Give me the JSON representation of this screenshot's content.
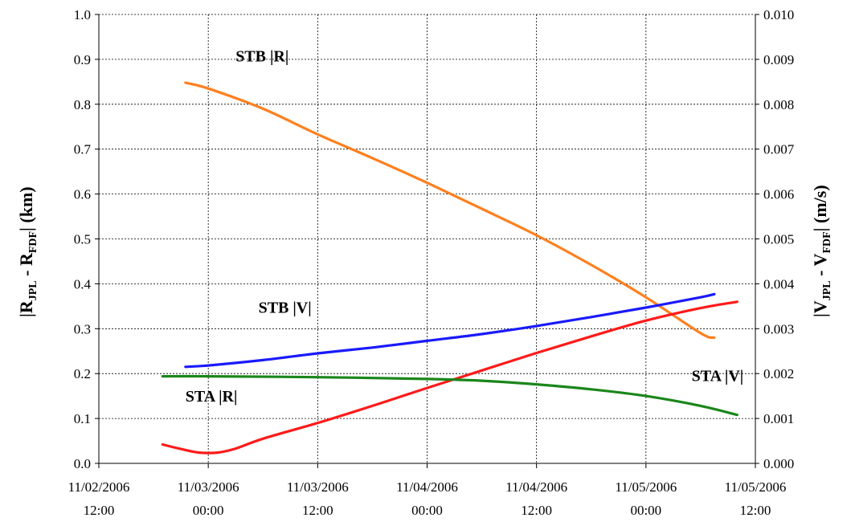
{
  "chart_data": {
    "type": "line",
    "left_axis": {
      "label_main": "|R",
      "label_sub1": "JPL",
      "label_mid": " - R",
      "label_sub2": "FDF",
      "label_end": "| (km)",
      "ylim": [
        0,
        1.0
      ],
      "ticks": [
        "0.0",
        "0.1",
        "0.2",
        "0.3",
        "0.4",
        "0.5",
        "0.6",
        "0.7",
        "0.8",
        "0.9",
        "1.0"
      ]
    },
    "right_axis": {
      "label_main": "|V",
      "label_sub1": "JPL",
      "label_mid": " - V",
      "label_sub2": "FDF",
      "label_end": "| (m/s)",
      "ylim": [
        0,
        0.01
      ],
      "ticks": [
        "0.000",
        "0.001",
        "0.002",
        "0.003",
        "0.004",
        "0.005",
        "0.006",
        "0.007",
        "0.008",
        "0.009",
        "0.010"
      ]
    },
    "x_axis": {
      "xlim": [
        "2006-11-02T12:00",
        "2006-11-05T12:00"
      ],
      "ticks": [
        {
          "date": "11/02/2006",
          "time": "12:00"
        },
        {
          "date": "11/03/2006",
          "time": "00:00"
        },
        {
          "date": "11/03/2006",
          "time": "12:00"
        },
        {
          "date": "11/04/2006",
          "time": "00:00"
        },
        {
          "date": "11/04/2006",
          "time": "12:00"
        },
        {
          "date": "11/05/2006",
          "time": "00:00"
        },
        {
          "date": "11/05/2006",
          "time": "12:00"
        }
      ]
    },
    "grid": true,
    "series": [
      {
        "name": "STB |R|",
        "axis": "left",
        "color": "#ff7f1e",
        "points": [
          [
            "2006-11-02T21:30",
            0.848
          ],
          [
            "2006-11-03T00:00",
            0.835
          ],
          [
            "2006-11-03T06:00",
            0.79
          ],
          [
            "2006-11-03T12:00",
            0.733
          ],
          [
            "2006-11-03T18:00",
            0.68
          ],
          [
            "2006-11-04T00:00",
            0.625
          ],
          [
            "2006-11-04T06:00",
            0.567
          ],
          [
            "2006-11-04T12:00",
            0.508
          ],
          [
            "2006-11-04T18:00",
            0.442
          ],
          [
            "2006-11-05T00:00",
            0.37
          ],
          [
            "2006-11-05T06:00",
            0.29
          ],
          [
            "2006-11-05T07:30",
            0.28
          ]
        ]
      },
      {
        "name": "STB |V|",
        "axis": "right",
        "color": "#1a1aff",
        "points": [
          [
            "2006-11-02T21:30",
            0.00215
          ],
          [
            "2006-11-03T00:00",
            0.00218
          ],
          [
            "2006-11-03T06:00",
            0.0023
          ],
          [
            "2006-11-03T12:00",
            0.00245
          ],
          [
            "2006-11-03T18:00",
            0.00258
          ],
          [
            "2006-11-04T00:00",
            0.00273
          ],
          [
            "2006-11-04T06:00",
            0.00288
          ],
          [
            "2006-11-04T12:00",
            0.00306
          ],
          [
            "2006-11-04T18:00",
            0.00326
          ],
          [
            "2006-11-05T00:00",
            0.00347
          ],
          [
            "2006-11-05T06:00",
            0.0037
          ],
          [
            "2006-11-05T07:30",
            0.00377
          ]
        ]
      },
      {
        "name": "STA |R|",
        "axis": "left",
        "color": "#ff1a1a",
        "points": [
          [
            "2006-11-02T19:00",
            0.042
          ],
          [
            "2006-11-02T21:00",
            0.032
          ],
          [
            "2006-11-02T23:00",
            0.024
          ],
          [
            "2006-11-03T01:00",
            0.024
          ],
          [
            "2006-11-03T03:00",
            0.033
          ],
          [
            "2006-11-03T06:00",
            0.055
          ],
          [
            "2006-11-03T12:00",
            0.09
          ],
          [
            "2006-11-03T18:00",
            0.128
          ],
          [
            "2006-11-04T00:00",
            0.168
          ],
          [
            "2006-11-04T06:00",
            0.207
          ],
          [
            "2006-11-04T12:00",
            0.246
          ],
          [
            "2006-11-04T18:00",
            0.283
          ],
          [
            "2006-11-05T00:00",
            0.318
          ],
          [
            "2006-11-05T06:00",
            0.346
          ],
          [
            "2006-11-05T10:00",
            0.36
          ]
        ]
      },
      {
        "name": "STA |V|",
        "axis": "right",
        "color": "#1a861a",
        "points": [
          [
            "2006-11-02T19:00",
            0.00194
          ],
          [
            "2006-11-03T00:00",
            0.00194
          ],
          [
            "2006-11-03T12:00",
            0.00192
          ],
          [
            "2006-11-04T00:00",
            0.00188
          ],
          [
            "2006-11-04T06:00",
            0.00184
          ],
          [
            "2006-11-04T12:00",
            0.00176
          ],
          [
            "2006-11-04T18:00",
            0.00165
          ],
          [
            "2006-11-05T00:00",
            0.0015
          ],
          [
            "2006-11-05T06:00",
            0.00128
          ],
          [
            "2006-11-05T10:00",
            0.00108
          ]
        ]
      }
    ],
    "annotations": [
      {
        "text": "STB |R|",
        "series": "STB |R|",
        "anchor_x": "2006-11-03T03:00",
        "anchor_y": 0.895,
        "axis": "left"
      },
      {
        "text": "STB |V|",
        "series": "STB |V|",
        "anchor_x": "2006-11-03T05:30",
        "anchor_y": 0.335,
        "axis": "left"
      },
      {
        "text": "STA |R|",
        "series": "STA |R|",
        "anchor_x": "2006-11-02T21:30",
        "anchor_y": 0.138,
        "axis": "left"
      },
      {
        "text": "STA |V|",
        "series": "STA |V|",
        "anchor_x": "2006-11-05T05:00",
        "anchor_y": 0.183,
        "axis": "left"
      }
    ]
  }
}
